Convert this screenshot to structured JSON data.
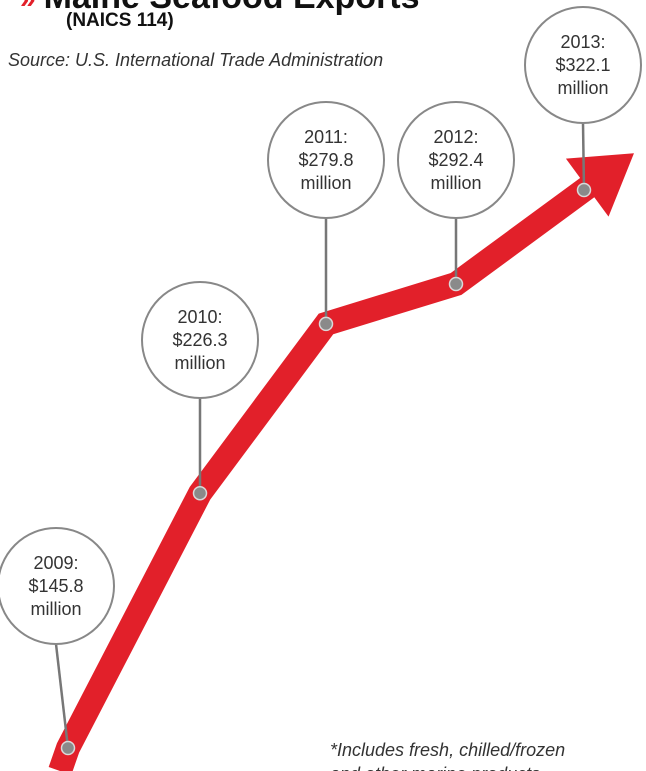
{
  "header": {
    "title": "Maine Seafood Exports",
    "subtitle": "(NAICS 114)",
    "source": "Source: U.S. International Trade Administration"
  },
  "footnote": {
    "line1": "*Includes fresh, chilled/frozen",
    "line2": "and other marine products"
  },
  "colors": {
    "accent": "#e2202a",
    "bubble_border": "#888888",
    "stem": "#777777"
  },
  "chart_data": {
    "type": "line",
    "title": "Maine Seafood Exports",
    "subtitle": "(NAICS 114)",
    "x": [
      "2009",
      "2010",
      "2011",
      "2012",
      "2013"
    ],
    "series": [
      {
        "values": [
          145.8,
          226.3,
          279.8,
          292.4,
          322.1
        ]
      }
    ],
    "labels": [
      {
        "year": "2009:",
        "value": "$145.8",
        "unit": "million"
      },
      {
        "year": "2010:",
        "value": "$226.3",
        "unit": "million"
      },
      {
        "year": "2011:",
        "value": "$279.8",
        "unit": "million"
      },
      {
        "year": "2012:",
        "value": "$292.4",
        "unit": "million"
      },
      {
        "year": "2013:",
        "value": "$322.1",
        "unit": "million"
      }
    ]
  }
}
